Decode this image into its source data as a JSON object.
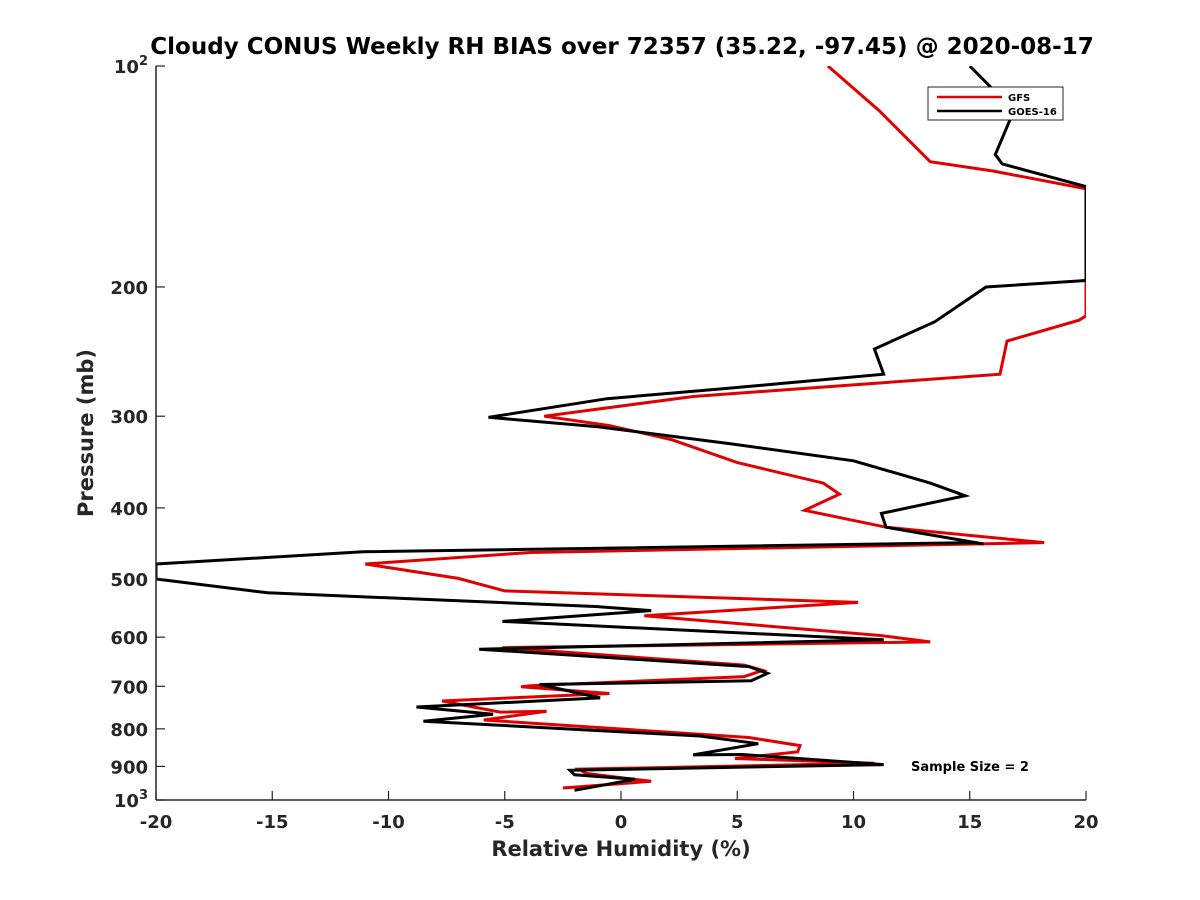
{
  "chart_data": {
    "type": "line",
    "title": "Cloudy CONUS Weekly RH BIAS over 72357 (35.22, -97.45) @ 2020-08-17",
    "xlabel": "Relative Humidity (%)",
    "ylabel": "Pressure (mb)",
    "xlim": [
      -20,
      20
    ],
    "ylim": [
      100,
      1000
    ],
    "y_scale": "log",
    "y_reversed": true,
    "grid": false,
    "legend_position": "top-right",
    "x_ticks": [
      "-20",
      "-15",
      "-10",
      "-5",
      "0",
      "5",
      "10",
      "15",
      "20"
    ],
    "y_ticks": [
      {
        "value": 100,
        "base": "10",
        "exp": "2"
      },
      {
        "value": 200,
        "label": "200"
      },
      {
        "value": 300,
        "label": "300"
      },
      {
        "value": 400,
        "label": "400"
      },
      {
        "value": 500,
        "label": "500"
      },
      {
        "value": 600,
        "label": "600"
      },
      {
        "value": 700,
        "label": "700"
      },
      {
        "value": 800,
        "label": "800"
      },
      {
        "value": 900,
        "label": "900"
      },
      {
        "value": 1000,
        "base": "10",
        "exp": "3"
      }
    ],
    "annotation": "Sample Size = 2",
    "series": [
      {
        "name": "GFS",
        "color": "#e00000",
        "points": [
          [
            8.9,
            100
          ],
          [
            11.1,
            115
          ],
          [
            13.3,
            135
          ],
          [
            16.0,
            139
          ],
          [
            20.0,
            147
          ],
          [
            20.0,
            219
          ],
          [
            19.7,
            222
          ],
          [
            16.6,
            237
          ],
          [
            16.3,
            263
          ],
          [
            3.1,
            282
          ],
          [
            -3.3,
            300
          ],
          [
            -0.5,
            309
          ],
          [
            2.2,
            323
          ],
          [
            5.0,
            347
          ],
          [
            8.7,
            370
          ],
          [
            9.4,
            383
          ],
          [
            7.9,
            403
          ],
          [
            11.4,
            425
          ],
          [
            18.2,
            446
          ],
          [
            15.2,
            448
          ],
          [
            -3.9,
            460
          ],
          [
            -11.0,
            477
          ],
          [
            -7.0,
            499
          ],
          [
            -5.0,
            519
          ],
          [
            10.2,
            538
          ],
          [
            1.0,
            561
          ],
          [
            11.2,
            597
          ],
          [
            13.3,
            609
          ],
          [
            -5.1,
            620
          ],
          [
            5.3,
            655
          ],
          [
            6.1,
            666
          ],
          [
            5.3,
            679
          ],
          [
            -3.9,
            699
          ],
          [
            -4.3,
            701
          ],
          [
            -0.5,
            716
          ],
          [
            -7.7,
            733
          ],
          [
            -5.2,
            759
          ],
          [
            -3.2,
            757
          ],
          [
            -5.9,
            778
          ],
          [
            5.5,
            822
          ],
          [
            7.7,
            843
          ],
          [
            7.6,
            860
          ],
          [
            4.9,
            878
          ],
          [
            10.9,
            891
          ],
          [
            -1.8,
            908
          ],
          [
            -1.5,
            920
          ],
          [
            1.3,
            943
          ],
          [
            -2.5,
            963
          ]
        ]
      },
      {
        "name": "GOES-16",
        "color": "#000000",
        "points": [
          [
            15.0,
            100
          ],
          [
            16.9,
            115
          ],
          [
            16.1,
            132
          ],
          [
            16.4,
            136
          ],
          [
            20.0,
            146
          ],
          [
            20.0,
            196
          ],
          [
            15.7,
            200
          ],
          [
            13.5,
            223
          ],
          [
            10.9,
            243
          ],
          [
            11.3,
            263
          ],
          [
            4.5,
            275
          ],
          [
            -0.6,
            284
          ],
          [
            -5.7,
            301
          ],
          [
            -1.0,
            310
          ],
          [
            4.7,
            327
          ],
          [
            10.0,
            345
          ],
          [
            13.3,
            370
          ],
          [
            14.8,
            385
          ],
          [
            11.2,
            407
          ],
          [
            11.4,
            425
          ],
          [
            15.6,
            448
          ],
          [
            15.2,
            446
          ],
          [
            -11.1,
            459
          ],
          [
            -20.0,
            477
          ],
          [
            -20.0,
            500
          ],
          [
            -15.2,
            522
          ],
          [
            -1.1,
            545
          ],
          [
            1.3,
            552
          ],
          [
            -5.1,
            571
          ],
          [
            11.3,
            605
          ],
          [
            -6.1,
            623
          ],
          [
            5.5,
            658
          ],
          [
            6.3,
            672
          ],
          [
            5.6,
            688
          ],
          [
            -3.5,
            696
          ],
          [
            -0.9,
            726
          ],
          [
            -8.8,
            747
          ],
          [
            -5.5,
            764
          ],
          [
            -8.5,
            781
          ],
          [
            3.4,
            818
          ],
          [
            5.9,
            838
          ],
          [
            3.1,
            868
          ],
          [
            5.2,
            867
          ],
          [
            11.3,
            895
          ],
          [
            -2.2,
            911
          ],
          [
            -2.0,
            924
          ],
          [
            0.6,
            937
          ],
          [
            -2.0,
            970
          ]
        ]
      }
    ]
  }
}
